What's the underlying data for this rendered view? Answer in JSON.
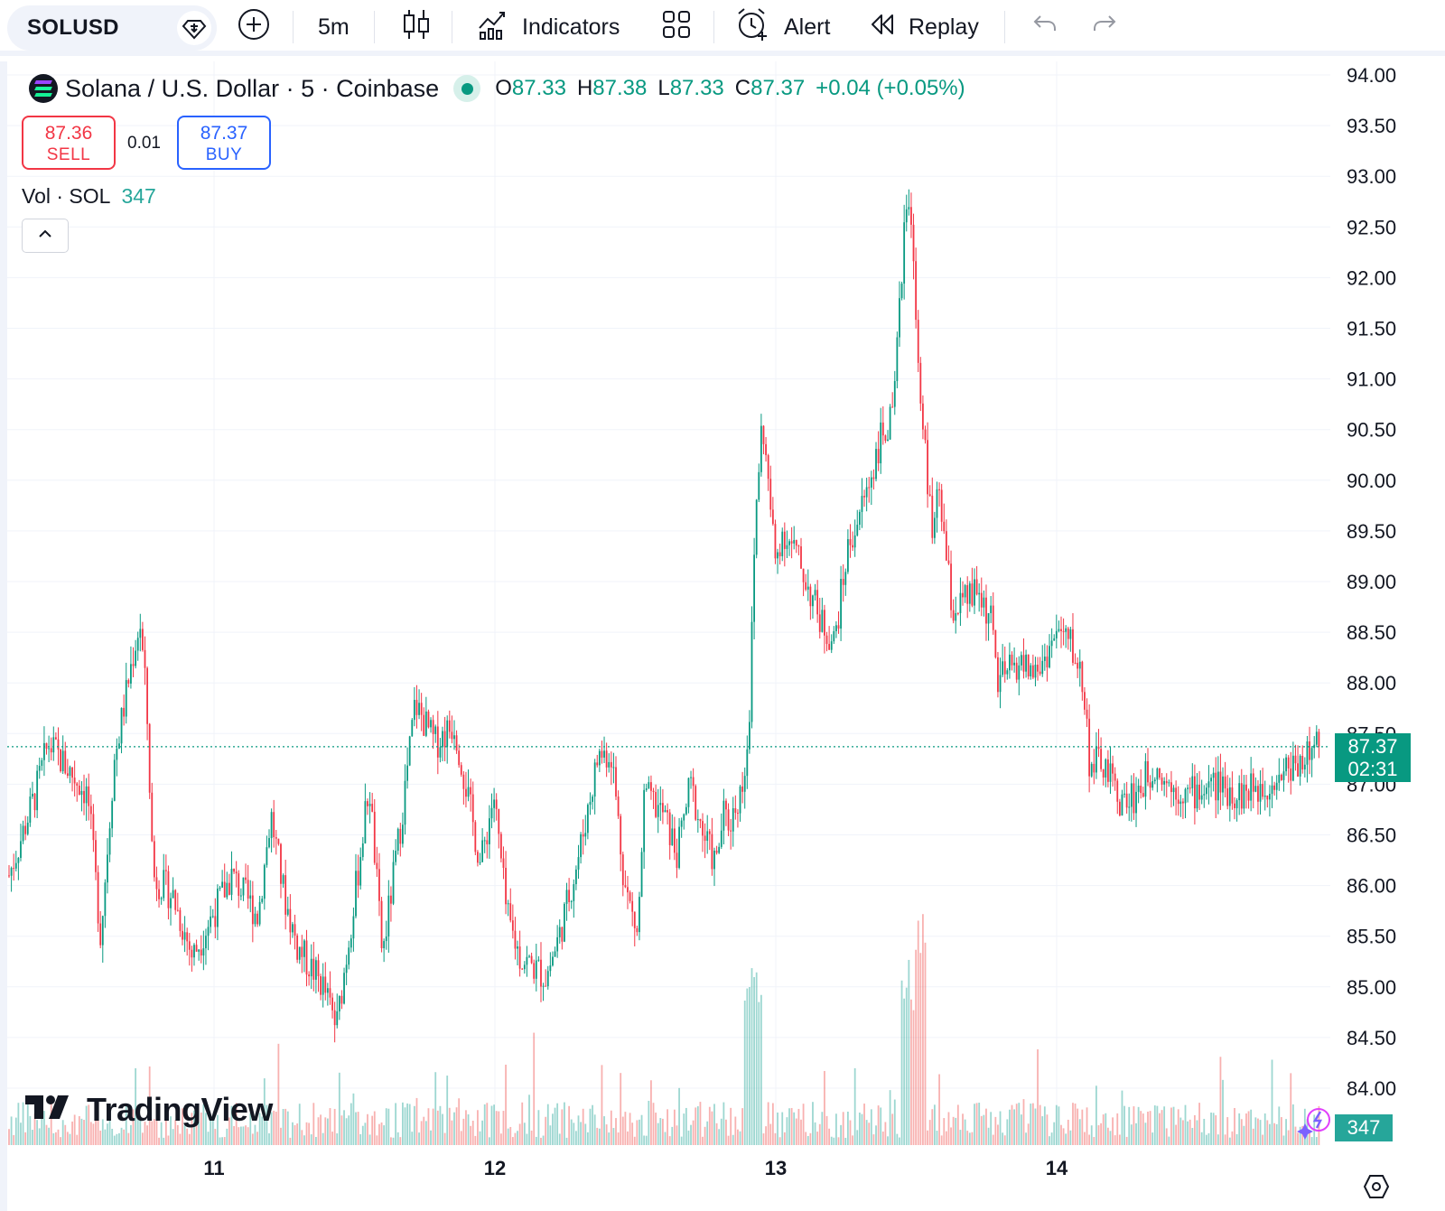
{
  "toolbar": {
    "symbol": "SOLUSD",
    "interval": "5m",
    "indicators_label": "Indicators",
    "alert_label": "Alert",
    "replay_label": "Replay"
  },
  "legend": {
    "title": "Solana / U.S. Dollar · 5 · Coinbase",
    "open_label": "O",
    "open": "87.33",
    "high_label": "H",
    "high": "87.38",
    "low_label": "L",
    "low": "87.33",
    "close_label": "C",
    "close": "87.37",
    "change": "+0.04 (+0.05%)"
  },
  "trade": {
    "sell_price": "87.36",
    "sell_label": "SELL",
    "spread": "0.01",
    "buy_price": "87.37",
    "buy_label": "BUY"
  },
  "volume_legend": {
    "label": "Vol · SOL",
    "value": "347"
  },
  "watermark": "TradingView",
  "price_tag": {
    "price": "87.37",
    "countdown": "02:31"
  },
  "volume_tag": "347",
  "colors": {
    "up": "#089981",
    "down": "#f23645",
    "vol_up": "#26a69a",
    "vol_down": "#ef5350",
    "accent": "#2962ff"
  },
  "chart_data": {
    "type": "candlestick",
    "symbol": "SOLUSD",
    "interval": "5",
    "exchange": "Coinbase",
    "y_ticks": [
      "94.00",
      "93.50",
      "93.00",
      "92.50",
      "92.00",
      "91.50",
      "91.00",
      "90.50",
      "90.00",
      "89.50",
      "89.00",
      "88.50",
      "88.00",
      "87.50",
      "87.00",
      "86.50",
      "86.00",
      "85.50",
      "85.00",
      "84.50",
      "84.00"
    ],
    "ylim": [
      83.5,
      94.0
    ],
    "x_ticks": [
      "11",
      "12",
      "13",
      "14"
    ],
    "last_price": 87.37,
    "price_path": [
      [
        0.0,
        86.1
      ],
      [
        0.02,
        86.9
      ],
      [
        0.03,
        87.4
      ],
      [
        0.06,
        86.9
      ],
      [
        0.07,
        85.5
      ],
      [
        0.08,
        87.2
      ],
      [
        0.095,
        88.3
      ],
      [
        0.1,
        88.6
      ],
      [
        0.105,
        87.8
      ],
      [
        0.11,
        86.1
      ],
      [
        0.125,
        85.9
      ],
      [
        0.14,
        85.3
      ],
      [
        0.17,
        86.1
      ],
      [
        0.19,
        85.7
      ],
      [
        0.2,
        86.7
      ],
      [
        0.21,
        85.9
      ],
      [
        0.22,
        85.4
      ],
      [
        0.24,
        85.0
      ],
      [
        0.25,
        84.6
      ],
      [
        0.265,
        86.0
      ],
      [
        0.275,
        87.0
      ],
      [
        0.285,
        85.3
      ],
      [
        0.3,
        86.7
      ],
      [
        0.31,
        87.8
      ],
      [
        0.325,
        87.4
      ],
      [
        0.34,
        87.6
      ],
      [
        0.35,
        86.9
      ],
      [
        0.36,
        86.2
      ],
      [
        0.37,
        86.9
      ],
      [
        0.38,
        85.7
      ],
      [
        0.39,
        85.3
      ],
      [
        0.41,
        85.1
      ],
      [
        0.42,
        85.5
      ],
      [
        0.435,
        86.3
      ],
      [
        0.45,
        87.3
      ],
      [
        0.46,
        87.3
      ],
      [
        0.47,
        86.0
      ],
      [
        0.48,
        85.5
      ],
      [
        0.485,
        86.9
      ],
      [
        0.5,
        86.7
      ],
      [
        0.51,
        86.3
      ],
      [
        0.52,
        87.0
      ],
      [
        0.53,
        86.5
      ],
      [
        0.54,
        86.2
      ],
      [
        0.545,
        86.7
      ],
      [
        0.55,
        86.6
      ],
      [
        0.56,
        87.0
      ],
      [
        0.565,
        87.6
      ],
      [
        0.57,
        89.7
      ],
      [
        0.575,
        90.6
      ],
      [
        0.58,
        89.9
      ],
      [
        0.585,
        89.2
      ],
      [
        0.59,
        89.5
      ],
      [
        0.6,
        89.3
      ],
      [
        0.62,
        88.6
      ],
      [
        0.63,
        88.4
      ],
      [
        0.64,
        89.3
      ],
      [
        0.655,
        89.9
      ],
      [
        0.665,
        90.4
      ],
      [
        0.675,
        90.6
      ],
      [
        0.68,
        91.7
      ],
      [
        0.685,
        92.8
      ],
      [
        0.69,
        92.4
      ],
      [
        0.695,
        91.0
      ],
      [
        0.7,
        90.2
      ],
      [
        0.705,
        89.4
      ],
      [
        0.71,
        89.9
      ],
      [
        0.72,
        88.7
      ],
      [
        0.74,
        88.9
      ],
      [
        0.75,
        88.6
      ],
      [
        0.755,
        88.0
      ],
      [
        0.77,
        88.2
      ],
      [
        0.785,
        88.1
      ],
      [
        0.8,
        88.5
      ],
      [
        0.81,
        88.4
      ],
      [
        0.82,
        88.0
      ],
      [
        0.825,
        87.2
      ],
      [
        0.835,
        87.2
      ],
      [
        0.85,
        86.8
      ],
      [
        0.86,
        86.9
      ],
      [
        0.875,
        87.2
      ],
      [
        0.885,
        87.0
      ],
      [
        0.9,
        86.9
      ],
      [
        0.92,
        87.0
      ],
      [
        0.94,
        86.9
      ],
      [
        0.96,
        87.0
      ],
      [
        0.98,
        87.2
      ],
      [
        1.0,
        87.37
      ]
    ]
  }
}
